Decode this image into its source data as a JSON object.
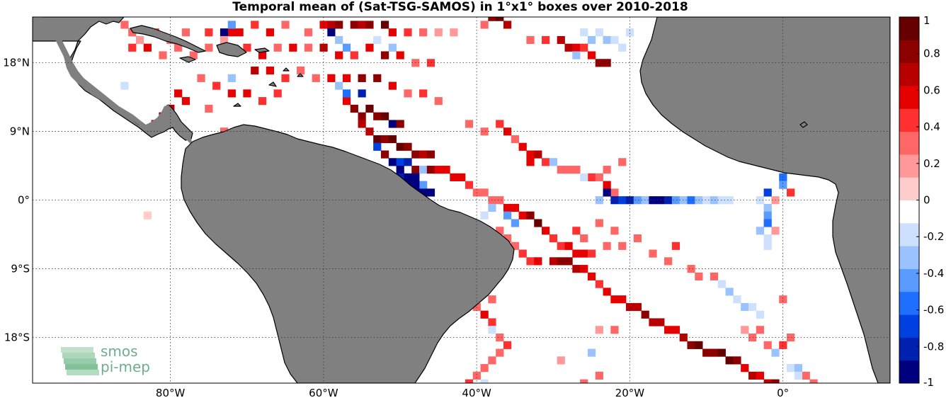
{
  "title": "Temporal mean of (Sat-TSG-SAMOS) in 1°x1° boxes over 2010-2018",
  "map": {
    "lon_range": [
      -98,
      14
    ],
    "lat_range": [
      -24,
      24
    ],
    "lon_ticks": [
      {
        "value": -80,
        "label": "80°W"
      },
      {
        "value": -60,
        "label": "60°W"
      },
      {
        "value": -40,
        "label": "40°W"
      },
      {
        "value": -20,
        "label": "20°W"
      },
      {
        "value": 0,
        "label": "0°"
      }
    ],
    "lat_ticks": [
      {
        "value": 18,
        "label": "18°N"
      },
      {
        "value": 9,
        "label": "9°N"
      },
      {
        "value": 0,
        "label": "0°"
      },
      {
        "value": -9,
        "label": "9°S"
      },
      {
        "value": -18,
        "label": "18°S"
      }
    ],
    "land_color": "#808080",
    "grid": "dotted"
  },
  "colorbar": {
    "range": [
      -1,
      1
    ],
    "ticks": [
      {
        "value": 1,
        "label": "1"
      },
      {
        "value": 0.8,
        "label": "0.8"
      },
      {
        "value": 0.6,
        "label": "0.6"
      },
      {
        "value": 0.4,
        "label": "0.4"
      },
      {
        "value": 0.2,
        "label": "0.2"
      },
      {
        "value": 0,
        "label": "0"
      },
      {
        "value": -0.2,
        "label": "-0.2"
      },
      {
        "value": -0.4,
        "label": "-0.4"
      },
      {
        "value": -0.6,
        "label": "-0.6"
      },
      {
        "value": -0.8,
        "label": "-0.8"
      },
      {
        "value": -1,
        "label": "-1"
      }
    ],
    "colors": [
      "#00007f",
      "#0020b0",
      "#0040e0",
      "#1f6fff",
      "#5a9bff",
      "#9ac2ff",
      "#cde0ff",
      "#ffffff",
      "#ffcccc",
      "#ff9999",
      "#ff6666",
      "#ff3030",
      "#e60000",
      "#b80000",
      "#8c0000",
      "#660000"
    ]
  },
  "logo": {
    "line1": "smos",
    "line2": "pi-mep"
  },
  "chart_data": {
    "type": "heatmap",
    "title": "Temporal mean of (Sat-TSG-SAMOS) in 1°x1° boxes over 2010-2018",
    "value_range": [
      -1,
      1
    ],
    "cells": [
      [
        -86,
        23,
        0.25
      ],
      [
        -85,
        22,
        0.35
      ],
      [
        -84,
        21,
        0.2
      ],
      [
        -82,
        22,
        0.45
      ],
      [
        -80,
        21,
        0.3
      ],
      [
        -78,
        22,
        0.25
      ],
      [
        -75,
        22,
        0.4
      ],
      [
        -72,
        22,
        0.6
      ],
      [
        -71,
        22,
        0.55
      ],
      [
        -69,
        23,
        0.45
      ],
      [
        -67,
        22,
        0.5
      ],
      [
        -65,
        23,
        0.35
      ],
      [
        -62,
        22,
        0.3
      ],
      [
        -60,
        23,
        0.55
      ],
      [
        -59,
        23,
        0.7
      ],
      [
        -58,
        23,
        0.8
      ],
      [
        -56,
        23,
        0.85
      ],
      [
        -55,
        23,
        0.7
      ],
      [
        -54,
        23,
        0.75
      ],
      [
        -52,
        23,
        0.9
      ],
      [
        -51,
        22,
        0.55
      ],
      [
        -49,
        22,
        0.4
      ],
      [
        -47,
        22,
        0.25
      ],
      [
        -45,
        22,
        0.2
      ],
      [
        -43,
        22,
        0.2
      ],
      [
        -39,
        23,
        0.25
      ],
      [
        -38,
        24,
        0.85
      ],
      [
        -37,
        24,
        0.9
      ],
      [
        -36,
        23,
        0.7
      ],
      [
        -33,
        21,
        0.3
      ],
      [
        -31,
        21,
        0.4
      ],
      [
        -29,
        21,
        0.65
      ],
      [
        -28,
        20,
        0.7
      ],
      [
        -27,
        20,
        0.55
      ],
      [
        -26,
        20,
        0.45
      ],
      [
        -25,
        19,
        0.6
      ],
      [
        -24,
        18,
        0.75
      ],
      [
        -23,
        18,
        0.8
      ],
      [
        -59,
        22,
        -0.9
      ],
      [
        -73,
        22,
        -0.95
      ],
      [
        -72,
        23,
        -0.5
      ],
      [
        -58,
        21,
        -0.3
      ],
      [
        -57,
        20,
        -0.4
      ],
      [
        -56,
        19,
        -0.25
      ],
      [
        -53,
        21,
        -0.2
      ],
      [
        -51,
        20,
        -0.3
      ],
      [
        -24,
        22,
        -0.25
      ],
      [
        -23,
        21,
        -0.3
      ],
      [
        -22,
        21,
        -0.2
      ],
      [
        -21,
        20,
        -0.25
      ],
      [
        -25,
        21,
        -0.35
      ],
      [
        -26,
        22,
        -0.2
      ],
      [
        -20,
        22,
        -0.2
      ],
      [
        -27,
        19,
        -0.3
      ],
      [
        -85,
        20,
        0.4
      ],
      [
        -83,
        20,
        0.55
      ],
      [
        -81,
        19,
        0.3
      ],
      [
        -79,
        20,
        0.25
      ],
      [
        -77,
        19,
        0.35
      ],
      [
        -75,
        20,
        0.3
      ],
      [
        -73,
        21,
        0.2
      ],
      [
        -70,
        20,
        0.45
      ],
      [
        -68,
        19,
        0.5
      ],
      [
        -66,
        20,
        0.3
      ],
      [
        -64,
        20,
        0.6
      ],
      [
        -62,
        20,
        0.25
      ],
      [
        -60,
        20,
        0.7
      ],
      [
        -58,
        19,
        0.55
      ],
      [
        -56,
        19,
        0.45
      ],
      [
        -54,
        20,
        0.6
      ],
      [
        -52,
        19,
        0.8
      ],
      [
        -50,
        19,
        0.55
      ],
      [
        -48,
        18,
        0.35
      ],
      [
        -46,
        18,
        0.4
      ],
      [
        -69,
        17,
        0.65
      ],
      [
        -67,
        17,
        0.5
      ],
      [
        -65,
        16,
        0.45
      ],
      [
        -63,
        17,
        0.3
      ],
      [
        -61,
        16,
        0.35
      ],
      [
        -59,
        16,
        0.5
      ],
      [
        -57,
        16,
        0.6
      ],
      [
        -55,
        16,
        0.75
      ],
      [
        -53,
        16,
        0.85
      ],
      [
        -51,
        15,
        0.55
      ],
      [
        -49,
        14,
        0.3
      ],
      [
        -47,
        14,
        0.4
      ],
      [
        -45,
        13,
        0.35
      ],
      [
        -76,
        16,
        0.3
      ],
      [
        -74,
        15,
        0.45
      ],
      [
        -72,
        14,
        0.5
      ],
      [
        -70,
        14,
        0.55
      ],
      [
        -68,
        13,
        0.45
      ],
      [
        -66,
        14,
        0.4
      ],
      [
        -78,
        13,
        0.55
      ],
      [
        -80,
        12,
        0.7
      ],
      [
        -81,
        11,
        0.85
      ],
      [
        -82,
        10,
        0.5
      ],
      [
        -79,
        14,
        0.6
      ],
      [
        -57,
        13,
        0.6
      ],
      [
        -56,
        12,
        0.8
      ],
      [
        -55,
        11,
        0.75
      ],
      [
        -54,
        12,
        0.95
      ],
      [
        -53,
        11,
        0.85
      ],
      [
        -52,
        11,
        0.9
      ],
      [
        -51,
        10,
        -0.98
      ],
      [
        -50,
        10,
        0.8
      ],
      [
        -55,
        10,
        0.65
      ],
      [
        -54,
        9,
        0.7
      ],
      [
        -53,
        8,
        0.9
      ],
      [
        -52,
        8,
        0.85
      ],
      [
        -51,
        8,
        0.95
      ],
      [
        -50,
        7,
        0.9
      ],
      [
        -49,
        7,
        0.85
      ],
      [
        -48,
        6,
        0.8
      ],
      [
        -47,
        6,
        0.7
      ],
      [
        -46,
        6,
        0.75
      ],
      [
        -55,
        14,
        -0.8
      ],
      [
        -57,
        14,
        -0.6
      ],
      [
        -58,
        15,
        -0.3
      ],
      [
        -53,
        7,
        -0.7
      ],
      [
        -52,
        6,
        0.85
      ],
      [
        -51,
        5,
        -0.9
      ],
      [
        -50,
        5,
        -0.7
      ],
      [
        -49,
        5,
        -0.85
      ],
      [
        -48,
        4,
        0.75
      ],
      [
        -47,
        4,
        -0.35
      ],
      [
        -46,
        4,
        0.8
      ],
      [
        -45,
        4,
        0.6
      ],
      [
        -50,
        4,
        -0.95
      ],
      [
        -49,
        3,
        -0.98
      ],
      [
        -48,
        3,
        -0.9
      ],
      [
        -47,
        2,
        -0.4
      ],
      [
        -49,
        2,
        -0.95
      ],
      [
        -48,
        1,
        -0.98
      ],
      [
        -47,
        1,
        -0.98
      ],
      [
        -46,
        1,
        -0.98
      ],
      [
        -48,
        2,
        -0.9
      ],
      [
        -50,
        3,
        -0.85
      ],
      [
        -44,
        4,
        0.6
      ],
      [
        -43,
        3,
        0.55
      ],
      [
        -42,
        3,
        0.5
      ],
      [
        -41,
        2,
        0.4
      ],
      [
        -40,
        1,
        0.35
      ],
      [
        -39,
        1,
        0.3
      ],
      [
        -38,
        0,
        0.25
      ],
      [
        -37,
        0,
        0.35
      ],
      [
        -36,
        -1,
        0.55
      ],
      [
        -35,
        -1,
        0.5
      ],
      [
        -34,
        -2,
        0.6
      ],
      [
        -33,
        -2,
        0.75
      ],
      [
        -32,
        -3,
        0.9
      ],
      [
        -31,
        -4,
        0.6
      ],
      [
        -30,
        -5,
        0.45
      ],
      [
        -29,
        -6,
        0.4
      ],
      [
        -28,
        -6,
        0.5
      ],
      [
        -27,
        -7,
        0.55
      ],
      [
        -26,
        -7,
        0.6
      ],
      [
        -25,
        -7,
        0.45
      ],
      [
        -41,
        10,
        0.3
      ],
      [
        -39,
        9,
        0.25
      ],
      [
        -37,
        10,
        0.4
      ],
      [
        -36,
        9,
        0.55
      ],
      [
        -35,
        8,
        0.35
      ],
      [
        -34,
        7,
        0.5
      ],
      [
        -33,
        6,
        0.6
      ],
      [
        -31,
        5,
        0.45
      ],
      [
        -29,
        4,
        0.3
      ],
      [
        -27,
        4,
        0.35
      ],
      [
        -25,
        3,
        0.4
      ],
      [
        -23,
        2,
        0.5
      ],
      [
        -22,
        1,
        0.3
      ],
      [
        -33,
        5,
        0.55
      ],
      [
        -32,
        6,
        0.7
      ],
      [
        -30,
        5,
        -0.3
      ],
      [
        -28,
        4,
        0.25
      ],
      [
        -26,
        3,
        -0.25
      ],
      [
        -24,
        3,
        0.25
      ],
      [
        -23,
        4,
        0.35
      ],
      [
        -21,
        5,
        0.3
      ],
      [
        -24,
        0,
        -0.3
      ],
      [
        -23,
        1,
        -0.9
      ],
      [
        -22,
        0,
        -0.85
      ],
      [
        -21,
        0,
        -0.7
      ],
      [
        -20,
        0,
        -0.8
      ],
      [
        -19,
        0,
        -0.5
      ],
      [
        -18,
        0,
        -0.3
      ],
      [
        -17,
        0,
        -0.9
      ],
      [
        -16,
        0,
        -0.95
      ],
      [
        -15,
        0,
        -0.85
      ],
      [
        -14,
        0,
        -0.4
      ],
      [
        -13,
        0,
        -0.3
      ],
      [
        -12,
        0,
        -0.55
      ],
      [
        -11,
        0,
        -0.35
      ],
      [
        -10,
        0,
        -0.25
      ],
      [
        -9,
        0,
        -0.3
      ],
      [
        -8,
        0,
        -0.2
      ],
      [
        -7,
        0,
        -0.25
      ],
      [
        -3,
        0,
        -0.2
      ],
      [
        -2,
        1,
        -0.7
      ],
      [
        -1,
        0,
        0.2
      ],
      [
        0,
        3,
        -0.6
      ],
      [
        0,
        2,
        -0.4
      ],
      [
        1,
        1,
        0.45
      ],
      [
        -2,
        -1,
        -0.35
      ],
      [
        -2,
        -2,
        -0.5
      ],
      [
        -2,
        -3,
        -0.6
      ],
      [
        -3,
        -4,
        -0.3
      ],
      [
        -2,
        -5,
        -0.25
      ],
      [
        -2,
        -6,
        -0.2
      ],
      [
        -1,
        -4,
        0.2
      ],
      [
        -35,
        -6,
        0.3
      ],
      [
        -34,
        -7,
        0.4
      ],
      [
        -33,
        -8,
        0.45
      ],
      [
        -32,
        -8,
        0.6
      ],
      [
        -30,
        -8,
        0.7
      ],
      [
        -29,
        -8,
        0.8
      ],
      [
        -28,
        -8,
        0.75
      ],
      [
        -27,
        -9,
        0.65
      ],
      [
        -26,
        -9,
        0.5
      ],
      [
        -25,
        -10,
        0.55
      ],
      [
        -24,
        -11,
        0.45
      ],
      [
        -23,
        -12,
        0.55
      ],
      [
        -22,
        -13,
        0.6
      ],
      [
        -21,
        -13,
        0.55
      ],
      [
        -20,
        -14,
        0.65
      ],
      [
        -19,
        -14,
        0.7
      ],
      [
        -18,
        -15,
        0.75
      ],
      [
        -17,
        -16,
        0.7
      ],
      [
        -16,
        -16,
        0.65
      ],
      [
        -15,
        -17,
        0.6
      ],
      [
        -14,
        -17,
        0.55
      ],
      [
        -13,
        -18,
        0.65
      ],
      [
        -12,
        -19,
        0.85
      ],
      [
        -11,
        -19,
        0.9
      ],
      [
        -10,
        -20,
        0.8
      ],
      [
        -9,
        -20,
        0.85
      ],
      [
        -8,
        -20,
        0.9
      ],
      [
        -7,
        -21,
        0.95
      ],
      [
        -6,
        -21,
        0.75
      ],
      [
        -5,
        -22,
        0.6
      ],
      [
        -4,
        -23,
        0.65
      ],
      [
        -3,
        -23,
        0.55
      ],
      [
        -2,
        -24,
        0.7
      ],
      [
        -1,
        -24,
        0.85
      ],
      [
        -37,
        -4,
        0.3
      ],
      [
        -36,
        -5,
        0.25
      ],
      [
        -38,
        -1,
        -0.3
      ],
      [
        -39,
        -2,
        -0.25
      ],
      [
        -36,
        -2,
        -0.5
      ],
      [
        -35,
        -3,
        -0.4
      ],
      [
        -27,
        -4,
        0.4
      ],
      [
        -26,
        -5,
        0.35
      ],
      [
        -24,
        -3,
        0.3
      ],
      [
        -23,
        -6,
        0.25
      ],
      [
        -22,
        -4,
        0.3
      ],
      [
        -21,
        -6,
        0.35
      ],
      [
        -19,
        -5,
        0.3
      ],
      [
        -17,
        -7,
        0.25
      ],
      [
        -15,
        -8,
        0.3
      ],
      [
        -14,
        -6,
        0.4
      ],
      [
        -12,
        -9,
        0.35
      ],
      [
        -11,
        -10,
        0.3
      ],
      [
        -9,
        -10,
        0.25
      ],
      [
        -8,
        -11,
        -0.25
      ],
      [
        -7,
        -12,
        -0.3
      ],
      [
        -6,
        -13,
        -0.25
      ],
      [
        -5,
        -14,
        -0.35
      ],
      [
        -4,
        -14,
        -0.2
      ],
      [
        -3,
        -15,
        -0.25
      ],
      [
        -40,
        -14,
        0.3
      ],
      [
        -39,
        -15,
        0.55
      ],
      [
        -38,
        -16,
        0.45
      ],
      [
        -37,
        -18,
        0.35
      ],
      [
        -36,
        -19,
        0.4
      ],
      [
        -37,
        -20,
        0.25
      ],
      [
        -38,
        -21,
        0.3
      ],
      [
        -39,
        -22,
        0.25
      ],
      [
        -40,
        -23,
        0.35
      ],
      [
        -41,
        -24,
        0.45
      ],
      [
        -40,
        -12,
        0.2
      ],
      [
        -38,
        -13,
        0.3
      ],
      [
        -38,
        -17,
        -0.2
      ],
      [
        -39,
        -24,
        -0.25
      ],
      [
        -5,
        -17,
        0.2
      ],
      [
        -4,
        -18,
        0.3
      ],
      [
        -3,
        -17,
        0.25
      ],
      [
        -2,
        -19,
        0.35
      ],
      [
        -1,
        -20,
        -0.3
      ],
      [
        0,
        -19,
        0.4
      ],
      [
        1,
        -18,
        0.25
      ],
      [
        0,
        -13,
        0.3
      ],
      [
        1,
        -22,
        -0.25
      ],
      [
        2,
        -22,
        -0.35
      ],
      [
        3,
        -23,
        0.3
      ],
      [
        4,
        -24,
        0.35
      ],
      [
        2,
        -23,
        -0.2
      ],
      [
        -24,
        -17,
        0.2
      ],
      [
        -25,
        -20,
        -0.3
      ],
      [
        -26,
        -24,
        0.25
      ],
      [
        -24,
        -23,
        0.3
      ],
      [
        -22,
        -17,
        0.25
      ],
      [
        -29,
        -21,
        0.2
      ],
      [
        -83,
        -2,
        0.0
      ],
      [
        -72,
        16,
        -0.3
      ],
      [
        -86,
        15,
        -0.25
      ],
      [
        -75,
        12,
        0.25
      ],
      [
        -73,
        9,
        0.35
      ]
    ]
  }
}
